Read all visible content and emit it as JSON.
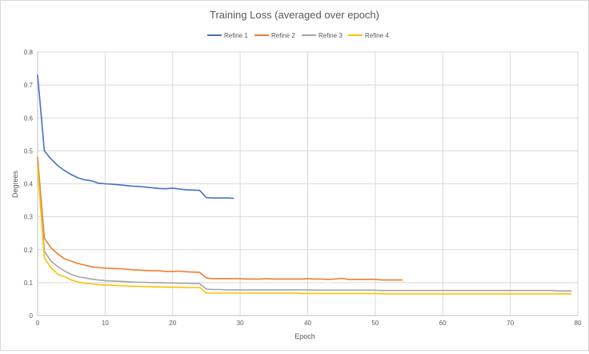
{
  "chart_data": {
    "type": "line",
    "title": "Training Loss (averaged over epoch)",
    "xlabel": "Epoch",
    "ylabel": "Degrees",
    "xlim": [
      0,
      80
    ],
    "ylim": [
      0,
      0.8
    ],
    "x_ticks": [
      0,
      10,
      20,
      30,
      40,
      50,
      60,
      70,
      80
    ],
    "y_ticks": [
      0,
      0.1,
      0.2,
      0.3,
      0.4,
      0.5,
      0.6,
      0.7,
      0.8
    ],
    "x_tick_labels": [
      "0",
      "10",
      "20",
      "30",
      "40",
      "50",
      "60",
      "70",
      "80"
    ],
    "y_tick_labels": [
      "0",
      "0.1",
      "0.2",
      "0.3",
      "0.4",
      "0.5",
      "0.6",
      "0.7",
      "0.8"
    ],
    "grid": true,
    "legend_position": "top",
    "series": [
      {
        "name": "Refine 1",
        "color": "#4472C4",
        "x": [
          0,
          1,
          2,
          3,
          4,
          5,
          6,
          7,
          8,
          9,
          10,
          11,
          12,
          13,
          14,
          15,
          16,
          17,
          18,
          19,
          20,
          21,
          22,
          23,
          24,
          25,
          26,
          27,
          28,
          29
        ],
        "values": [
          0.73,
          0.5,
          0.475,
          0.455,
          0.44,
          0.428,
          0.418,
          0.412,
          0.409,
          0.402,
          0.4,
          0.399,
          0.397,
          0.395,
          0.393,
          0.392,
          0.39,
          0.388,
          0.386,
          0.385,
          0.387,
          0.384,
          0.382,
          0.381,
          0.38,
          0.358,
          0.357,
          0.357,
          0.357,
          0.356
        ]
      },
      {
        "name": "Refine 2",
        "color": "#ED7D31",
        "x": [
          0,
          1,
          2,
          3,
          4,
          5,
          6,
          7,
          8,
          9,
          10,
          11,
          12,
          13,
          14,
          15,
          16,
          17,
          18,
          19,
          20,
          21,
          22,
          23,
          24,
          25,
          26,
          27,
          28,
          29,
          30,
          31,
          32,
          33,
          34,
          35,
          36,
          37,
          38,
          39,
          40,
          41,
          42,
          43,
          44,
          45,
          46,
          47,
          48,
          49,
          50,
          51,
          52,
          53,
          54
        ],
        "values": [
          0.48,
          0.235,
          0.205,
          0.187,
          0.172,
          0.165,
          0.158,
          0.153,
          0.148,
          0.146,
          0.144,
          0.143,
          0.142,
          0.141,
          0.139,
          0.138,
          0.137,
          0.136,
          0.136,
          0.134,
          0.134,
          0.135,
          0.133,
          0.132,
          0.131,
          0.114,
          0.112,
          0.112,
          0.112,
          0.112,
          0.112,
          0.111,
          0.111,
          0.111,
          0.112,
          0.111,
          0.111,
          0.111,
          0.111,
          0.111,
          0.112,
          0.111,
          0.111,
          0.11,
          0.111,
          0.113,
          0.11,
          0.11,
          0.11,
          0.11,
          0.11,
          0.108,
          0.108,
          0.108,
          0.108
        ]
      },
      {
        "name": "Refine 3",
        "color": "#A5A5A5",
        "x": [
          0,
          1,
          2,
          3,
          4,
          5,
          6,
          7,
          8,
          9,
          10,
          11,
          12,
          13,
          14,
          15,
          16,
          17,
          18,
          19,
          20,
          21,
          22,
          23,
          24,
          25,
          26,
          27,
          28,
          29,
          30,
          31,
          32,
          33,
          34,
          35,
          36,
          37,
          38,
          39,
          40,
          41,
          42,
          43,
          44,
          45,
          46,
          47,
          48,
          49,
          50,
          51,
          52,
          53,
          54,
          55,
          56,
          57,
          58,
          59,
          60,
          61,
          62,
          63,
          64,
          65,
          66,
          67,
          68,
          69,
          70,
          71,
          72,
          73,
          74,
          75,
          76,
          77,
          78,
          79
        ],
        "values": [
          0.46,
          0.195,
          0.165,
          0.148,
          0.135,
          0.125,
          0.118,
          0.114,
          0.111,
          0.108,
          0.106,
          0.105,
          0.104,
          0.103,
          0.102,
          0.101,
          0.101,
          0.1,
          0.1,
          0.099,
          0.099,
          0.098,
          0.098,
          0.097,
          0.097,
          0.08,
          0.079,
          0.079,
          0.078,
          0.078,
          0.078,
          0.078,
          0.078,
          0.078,
          0.078,
          0.078,
          0.078,
          0.078,
          0.078,
          0.078,
          0.078,
          0.077,
          0.077,
          0.077,
          0.077,
          0.077,
          0.077,
          0.077,
          0.077,
          0.077,
          0.077,
          0.076,
          0.076,
          0.076,
          0.076,
          0.076,
          0.076,
          0.076,
          0.076,
          0.076,
          0.076,
          0.076,
          0.076,
          0.076,
          0.076,
          0.076,
          0.076,
          0.076,
          0.076,
          0.076,
          0.076,
          0.076,
          0.076,
          0.076,
          0.076,
          0.076,
          0.076,
          0.075,
          0.075,
          0.075
        ]
      },
      {
        "name": "Refine 4",
        "color": "#FFC000",
        "x": [
          0,
          1,
          2,
          3,
          4,
          5,
          6,
          7,
          8,
          9,
          10,
          11,
          12,
          13,
          14,
          15,
          16,
          17,
          18,
          19,
          20,
          21,
          22,
          23,
          24,
          25,
          26,
          27,
          28,
          29,
          30,
          31,
          32,
          33,
          34,
          35,
          36,
          37,
          38,
          39,
          40,
          41,
          42,
          43,
          44,
          45,
          46,
          47,
          48,
          49,
          50,
          51,
          52,
          53,
          54,
          55,
          56,
          57,
          58,
          59,
          60,
          61,
          62,
          63,
          64,
          65,
          66,
          67,
          68,
          69,
          70,
          71,
          72,
          73,
          74,
          75,
          76,
          77,
          78,
          79
        ],
        "values": [
          0.45,
          0.175,
          0.145,
          0.125,
          0.118,
          0.108,
          0.102,
          0.098,
          0.096,
          0.094,
          0.093,
          0.092,
          0.091,
          0.09,
          0.089,
          0.089,
          0.088,
          0.087,
          0.087,
          0.086,
          0.086,
          0.086,
          0.085,
          0.085,
          0.085,
          0.068,
          0.068,
          0.068,
          0.068,
          0.068,
          0.068,
          0.068,
          0.068,
          0.068,
          0.068,
          0.068,
          0.068,
          0.068,
          0.068,
          0.067,
          0.067,
          0.067,
          0.067,
          0.067,
          0.067,
          0.067,
          0.067,
          0.067,
          0.067,
          0.067,
          0.067,
          0.066,
          0.066,
          0.066,
          0.066,
          0.066,
          0.066,
          0.066,
          0.066,
          0.066,
          0.066,
          0.066,
          0.066,
          0.066,
          0.066,
          0.066,
          0.066,
          0.066,
          0.066,
          0.066,
          0.066,
          0.066,
          0.066,
          0.066,
          0.066,
          0.066,
          0.066,
          0.066,
          0.066,
          0.066
        ]
      }
    ]
  }
}
